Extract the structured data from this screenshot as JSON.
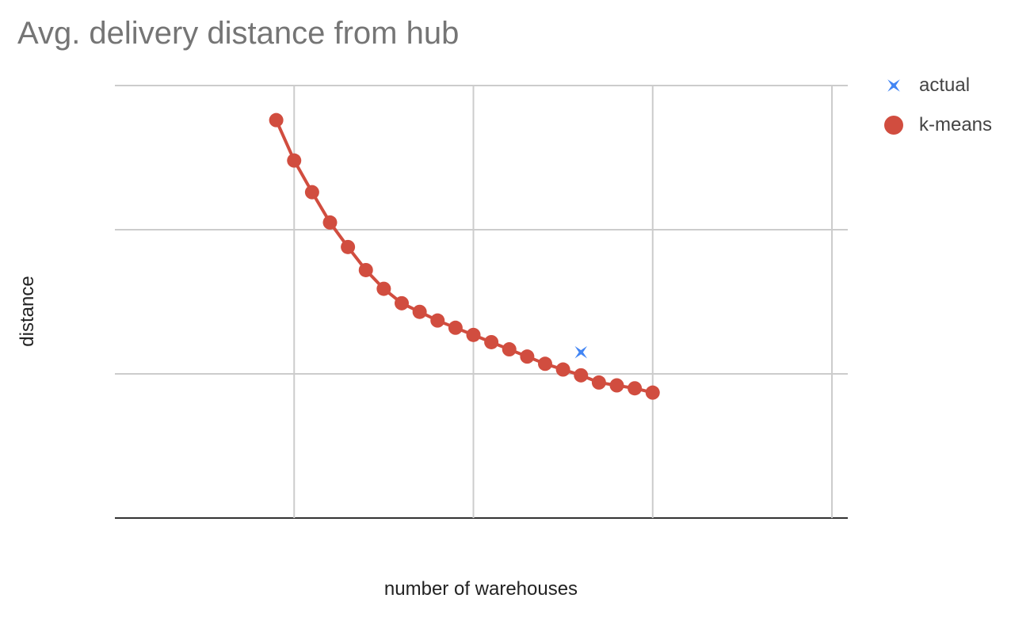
{
  "chart_data": {
    "type": "scatter",
    "title": "Avg. delivery distance from hub",
    "xlabel": "number of warehouses",
    "ylabel": "distance",
    "xlim": [
      0,
      40
    ],
    "ylim": [
      0,
      3
    ],
    "grid": true,
    "legend_position": "right",
    "x_gridlines": [
      0,
      10,
      20,
      30,
      40
    ],
    "y_gridlines": [
      0,
      1,
      2,
      3
    ],
    "series": [
      {
        "name": "actual",
        "marker": "star",
        "color": "#4285f4",
        "points": [
          [
            26,
            1.15
          ]
        ]
      },
      {
        "name": "k-means",
        "marker": "circle",
        "color": "#d14d3f",
        "line": true,
        "points": [
          [
            9,
            2.76
          ],
          [
            10,
            2.48
          ],
          [
            11,
            2.26
          ],
          [
            12,
            2.05
          ],
          [
            13,
            1.88
          ],
          [
            14,
            1.72
          ],
          [
            15,
            1.59
          ],
          [
            16,
            1.49
          ],
          [
            17,
            1.43
          ],
          [
            18,
            1.37
          ],
          [
            19,
            1.32
          ],
          [
            20,
            1.27
          ],
          [
            21,
            1.22
          ],
          [
            22,
            1.17
          ],
          [
            23,
            1.12
          ],
          [
            24,
            1.07
          ],
          [
            25,
            1.03
          ],
          [
            26,
            0.99
          ],
          [
            27,
            0.94
          ],
          [
            28,
            0.92
          ],
          [
            29,
            0.9
          ],
          [
            30,
            0.87
          ]
        ]
      }
    ]
  }
}
